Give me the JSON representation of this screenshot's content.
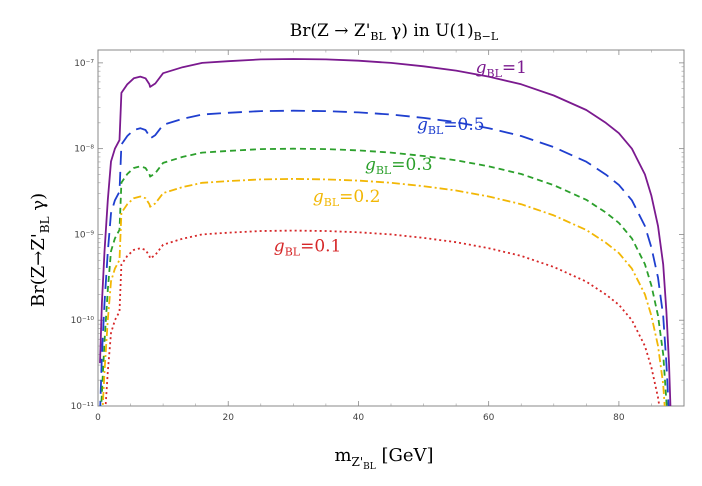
{
  "chart_data": {
    "type": "line",
    "title": "Br(Z → Z'",
    "title_sub1": "BL",
    "title_mid": " γ) in U(1)",
    "title_sub2": "B−L",
    "xlabel_main": "m",
    "xlabel_sub": "Z'",
    "xlabel_subsub": "BL",
    "xlabel_unit": " [GeV]",
    "ylabel_pre": "Br(Z→Z'",
    "ylabel_sub": "BL",
    "ylabel_post": " γ)",
    "xlim": [
      0,
      90
    ],
    "ylim_log10": [
      -11,
      -6.85
    ],
    "x_ticks": [
      0,
      20,
      40,
      60,
      80
    ],
    "x_tick_labels": [
      "0",
      "20",
      "40",
      "60",
      "80"
    ],
    "y_ticks": [
      -11,
      -10,
      -9,
      -8,
      -7
    ],
    "y_tick_labels": [
      "10⁻¹¹",
      "10⁻¹⁰",
      "10⁻⁹",
      "10⁻⁸",
      "10⁻⁷"
    ],
    "coupling_reference": 1,
    "reference_curve_gBL1": {
      "x": [
        0.3,
        0.6,
        1.0,
        1.5,
        2.0,
        2.6,
        3.3,
        3.6,
        4.5,
        5.5,
        6.5,
        7.3,
        7.9,
        8.0,
        8.8,
        10,
        13,
        16,
        20,
        25,
        30,
        35,
        40,
        45,
        50,
        55,
        60,
        65,
        70,
        75,
        78,
        80,
        82,
        84,
        85,
        86,
        86.8,
        87.3,
        87.7,
        88.0
      ],
      "log10_br": [
        -10.5,
        -9.8,
        -9.2,
        -8.6,
        -8.15,
        -8.0,
        -7.9,
        -7.35,
        -7.25,
        -7.18,
        -7.16,
        -7.18,
        -7.25,
        -7.28,
        -7.24,
        -7.12,
        -7.05,
        -7.0,
        -6.98,
        -6.96,
        -6.955,
        -6.96,
        -6.975,
        -7.0,
        -7.04,
        -7.09,
        -7.16,
        -7.25,
        -7.38,
        -7.55,
        -7.7,
        -7.82,
        -8.0,
        -8.3,
        -8.55,
        -8.9,
        -9.35,
        -9.9,
        -10.5,
        -11.2
      ]
    },
    "series": [
      {
        "name": "gBL=1",
        "g": 1.0,
        "color": "#7b1a8f",
        "dash": "",
        "label_prefix": "g",
        "label_sub": "BL",
        "label_value": "=1"
      },
      {
        "name": "gBL=0.5",
        "g": 0.5,
        "color": "#1f3fcf",
        "dash": "14,7",
        "label_prefix": "g",
        "label_sub": "BL",
        "label_value": "=0.5"
      },
      {
        "name": "gBL=0.3",
        "g": 0.3,
        "color": "#2ca02c",
        "dash": "6,4",
        "label_prefix": "g",
        "label_sub": "BL",
        "label_value": "=0.3"
      },
      {
        "name": "gBL=0.2",
        "g": 0.2,
        "color": "#f2b705",
        "dash": "8,3,2,3",
        "label_prefix": "g",
        "label_sub": "BL",
        "label_value": "=0.2"
      },
      {
        "name": "gBL=0.1",
        "g": 0.1,
        "color": "#d62728",
        "dash": "2,3",
        "label_prefix": "g",
        "label_sub": "BL",
        "label_value": "=0.1"
      }
    ],
    "label_anchor_x": [
      58,
      49,
      41,
      33,
      27
    ],
    "label_anchor_log10": [
      -7.12,
      -7.78,
      -8.25,
      -8.62,
      -9.2
    ]
  }
}
